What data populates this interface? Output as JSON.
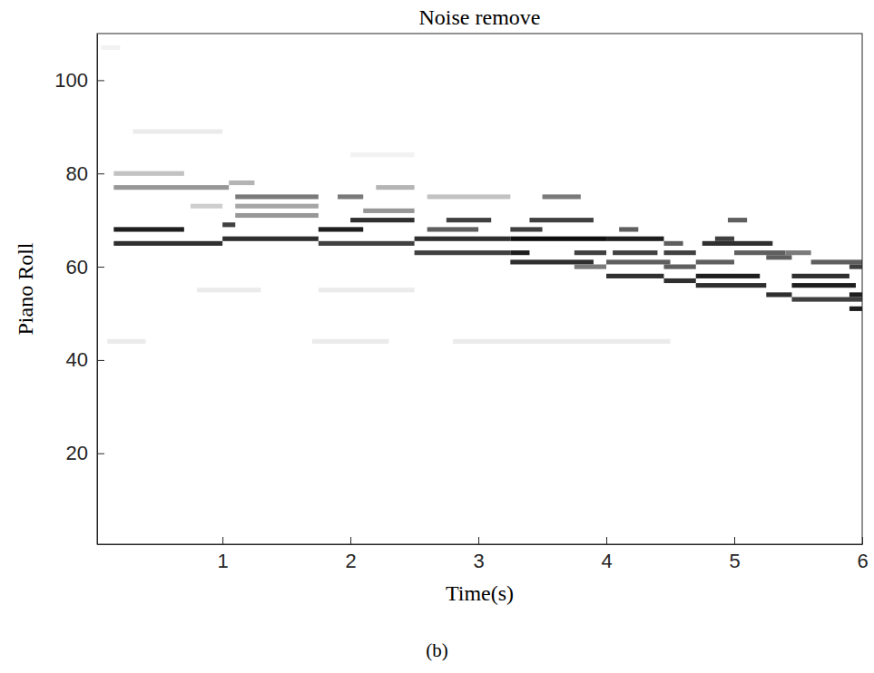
{
  "chart_data": {
    "type": "heatmap",
    "title": "Noise remove",
    "x_label": "Time(s)",
    "y_label": "Piano Roll",
    "caption": "(b)",
    "xlim": [
      0.02,
      6
    ],
    "ylim": [
      0.5,
      110
    ],
    "xticks": [
      1,
      2,
      3,
      4,
      5,
      6
    ],
    "yticks": [
      20,
      40,
      60,
      80,
      100
    ],
    "grid": false,
    "cells": [
      {
        "x0": 0.15,
        "x1": 0.7,
        "y": 68,
        "value": 0.9
      },
      {
        "x0": 0.15,
        "x1": 1.0,
        "y": 65,
        "value": 0.85
      },
      {
        "x0": 0.15,
        "x1": 1.05,
        "y": 77,
        "value": 0.5
      },
      {
        "x0": 0.15,
        "x1": 0.7,
        "y": 80,
        "value": 0.35
      },
      {
        "x0": 0.3,
        "x1": 1.0,
        "y": 89,
        "value": 0.15
      },
      {
        "x0": 0.75,
        "x1": 1.0,
        "y": 73,
        "value": 0.3
      },
      {
        "x0": 1.0,
        "x1": 1.75,
        "y": 66,
        "value": 0.85
      },
      {
        "x0": 1.0,
        "x1": 1.1,
        "y": 69,
        "value": 0.8
      },
      {
        "x0": 1.1,
        "x1": 1.75,
        "y": 71,
        "value": 0.5
      },
      {
        "x0": 1.1,
        "x1": 1.75,
        "y": 73,
        "value": 0.45
      },
      {
        "x0": 1.1,
        "x1": 1.75,
        "y": 75,
        "value": 0.6
      },
      {
        "x0": 1.05,
        "x1": 1.25,
        "y": 78,
        "value": 0.4
      },
      {
        "x0": 1.75,
        "x1": 2.5,
        "y": 65,
        "value": 0.8
      },
      {
        "x0": 1.75,
        "x1": 2.1,
        "y": 68,
        "value": 0.9
      },
      {
        "x0": 2.0,
        "x1": 2.5,
        "y": 70,
        "value": 0.85
      },
      {
        "x0": 2.1,
        "x1": 2.5,
        "y": 72,
        "value": 0.5
      },
      {
        "x0": 1.9,
        "x1": 2.1,
        "y": 75,
        "value": 0.6
      },
      {
        "x0": 2.2,
        "x1": 2.5,
        "y": 77,
        "value": 0.4
      },
      {
        "x0": 2.5,
        "x1": 3.25,
        "y": 63,
        "value": 0.8
      },
      {
        "x0": 2.5,
        "x1": 3.25,
        "y": 66,
        "value": 0.85
      },
      {
        "x0": 2.6,
        "x1": 3.0,
        "y": 68,
        "value": 0.7
      },
      {
        "x0": 2.75,
        "x1": 3.1,
        "y": 70,
        "value": 0.8
      },
      {
        "x0": 2.6,
        "x1": 3.25,
        "y": 75,
        "value": 0.35
      },
      {
        "x0": 3.25,
        "x1": 3.9,
        "y": 61,
        "value": 0.85
      },
      {
        "x0": 3.25,
        "x1": 3.4,
        "y": 63,
        "value": 0.9
      },
      {
        "x0": 3.25,
        "x1": 4.0,
        "y": 66,
        "value": 0.95
      },
      {
        "x0": 3.25,
        "x1": 3.5,
        "y": 68,
        "value": 0.8
      },
      {
        "x0": 3.4,
        "x1": 3.9,
        "y": 70,
        "value": 0.8
      },
      {
        "x0": 3.5,
        "x1": 3.8,
        "y": 75,
        "value": 0.6
      },
      {
        "x0": 3.75,
        "x1": 4.0,
        "y": 60,
        "value": 0.6
      },
      {
        "x0": 3.75,
        "x1": 4.0,
        "y": 63,
        "value": 0.8
      },
      {
        "x0": 4.0,
        "x1": 4.45,
        "y": 58,
        "value": 0.85
      },
      {
        "x0": 4.0,
        "x1": 4.5,
        "y": 61,
        "value": 0.7
      },
      {
        "x0": 4.05,
        "x1": 4.4,
        "y": 63,
        "value": 0.8
      },
      {
        "x0": 4.0,
        "x1": 4.45,
        "y": 66,
        "value": 0.9
      },
      {
        "x0": 4.1,
        "x1": 4.25,
        "y": 68,
        "value": 0.7
      },
      {
        "x0": 4.45,
        "x1": 4.7,
        "y": 57,
        "value": 0.85
      },
      {
        "x0": 4.45,
        "x1": 4.7,
        "y": 60,
        "value": 0.7
      },
      {
        "x0": 4.45,
        "x1": 4.7,
        "y": 63,
        "value": 0.8
      },
      {
        "x0": 4.45,
        "x1": 4.6,
        "y": 65,
        "value": 0.7
      },
      {
        "x0": 4.7,
        "x1": 5.25,
        "y": 56,
        "value": 0.85
      },
      {
        "x0": 4.7,
        "x1": 5.2,
        "y": 58,
        "value": 0.9
      },
      {
        "x0": 4.7,
        "x1": 5.0,
        "y": 61,
        "value": 0.7
      },
      {
        "x0": 4.75,
        "x1": 5.3,
        "y": 65,
        "value": 0.85
      },
      {
        "x0": 4.85,
        "x1": 5.0,
        "y": 66,
        "value": 0.8
      },
      {
        "x0": 4.95,
        "x1": 5.1,
        "y": 70,
        "value": 0.7
      },
      {
        "x0": 5.0,
        "x1": 5.4,
        "y": 63,
        "value": 0.7
      },
      {
        "x0": 5.25,
        "x1": 5.45,
        "y": 54,
        "value": 0.85
      },
      {
        "x0": 5.25,
        "x1": 5.45,
        "y": 62,
        "value": 0.7
      },
      {
        "x0": 5.45,
        "x1": 6.0,
        "y": 53,
        "value": 0.8
      },
      {
        "x0": 5.45,
        "x1": 5.95,
        "y": 56,
        "value": 0.9
      },
      {
        "x0": 5.45,
        "x1": 5.9,
        "y": 58,
        "value": 0.85
      },
      {
        "x0": 5.6,
        "x1": 6.0,
        "y": 61,
        "value": 0.7
      },
      {
        "x0": 5.4,
        "x1": 5.6,
        "y": 63,
        "value": 0.6
      },
      {
        "x0": 5.9,
        "x1": 6.0,
        "y": 51,
        "value": 0.9
      },
      {
        "x0": 5.9,
        "x1": 6.0,
        "y": 54,
        "value": 0.9
      },
      {
        "x0": 5.9,
        "x1": 6.0,
        "y": 60,
        "value": 0.8
      },
      {
        "x0": 0.1,
        "x1": 0.4,
        "y": 44,
        "value": 0.15
      },
      {
        "x0": 1.7,
        "x1": 2.3,
        "y": 44,
        "value": 0.15
      },
      {
        "x0": 2.8,
        "x1": 4.5,
        "y": 44,
        "value": 0.15
      },
      {
        "x0": 0.8,
        "x1": 1.3,
        "y": 55,
        "value": 0.15
      },
      {
        "x0": 1.75,
        "x1": 2.5,
        "y": 55,
        "value": 0.15
      },
      {
        "x0": 2.0,
        "x1": 2.5,
        "y": 84,
        "value": 0.1
      },
      {
        "x0": 0.05,
        "x1": 0.2,
        "y": 107,
        "value": 0.1
      }
    ]
  }
}
